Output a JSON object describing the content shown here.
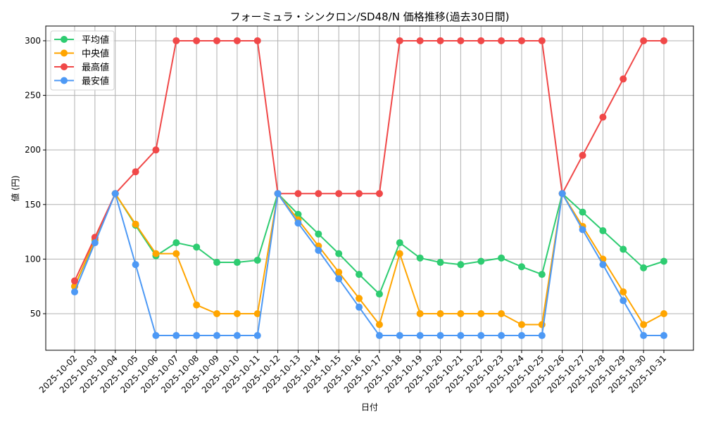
{
  "chart_data": {
    "type": "line",
    "title": "フォーミュラ・シンクロン/SD48/N 価格推移(過去30日間)",
    "xlabel": "日付",
    "ylabel": "値 (円)",
    "ylim": [
      16.5,
      313.5
    ],
    "yticks": [
      50,
      100,
      150,
      200,
      250,
      300
    ],
    "grid": true,
    "legend_position": "upper left",
    "x": [
      "2025-10-02",
      "2025-10-03",
      "2025-10-04",
      "2025-10-05",
      "2025-10-06",
      "2025-10-07",
      "2025-10-08",
      "2025-10-09",
      "2025-10-10",
      "2025-10-11",
      "2025-10-12",
      "2025-10-13",
      "2025-10-14",
      "2025-10-15",
      "2025-10-16",
      "2025-10-17",
      "2025-10-18",
      "2025-10-19",
      "2025-10-20",
      "2025-10-21",
      "2025-10-22",
      "2025-10-23",
      "2025-10-24",
      "2025-10-25",
      "2025-10-26",
      "2025-10-27",
      "2025-10-28",
      "2025-10-29",
      "2025-10-30",
      "2025-10-31"
    ],
    "series": [
      {
        "name": "平均値",
        "color": "#2ecc71",
        "values": [
          75,
          117,
          160,
          131,
          103,
          115,
          111,
          97,
          97,
          99,
          160,
          141,
          123,
          105,
          86,
          68,
          115,
          101,
          97,
          95,
          98,
          101,
          93,
          86,
          160,
          143,
          126,
          109,
          92,
          98
        ]
      },
      {
        "name": "中央値",
        "color": "#ffa500",
        "values": [
          75,
          118,
          160,
          132,
          105,
          105,
          58,
          50,
          50,
          50,
          160,
          136,
          112,
          88,
          64,
          40,
          105,
          50,
          50,
          50,
          50,
          50,
          40,
          40,
          160,
          130,
          100,
          70,
          40,
          50
        ]
      },
      {
        "name": "最高値",
        "color": "#f04848",
        "values": [
          80,
          120,
          160,
          180,
          200,
          300,
          300,
          300,
          300,
          300,
          160,
          160,
          160,
          160,
          160,
          160,
          300,
          300,
          300,
          300,
          300,
          300,
          300,
          300,
          160,
          195,
          230,
          265,
          300,
          300
        ]
      },
      {
        "name": "最安値",
        "color": "#4d99f5",
        "values": [
          70,
          115,
          160,
          95,
          30,
          30,
          30,
          30,
          30,
          30,
          160,
          133,
          108,
          82,
          56,
          30,
          30,
          30,
          30,
          30,
          30,
          30,
          30,
          30,
          160,
          127,
          95,
          62,
          30,
          30
        ]
      }
    ]
  }
}
